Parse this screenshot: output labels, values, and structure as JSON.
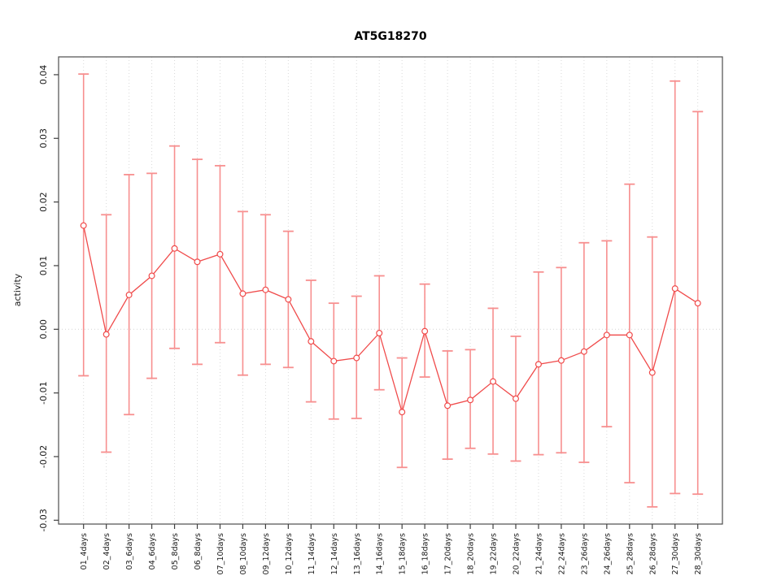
{
  "figure": {
    "background": "#ffffff"
  },
  "chart_data": {
    "type": "line",
    "title": "AT5G18270",
    "xlabel": "",
    "ylabel": "activity",
    "marker": "open-circle",
    "grid": "vertical-dotted",
    "zero_line": true,
    "legend": "none",
    "ylim": [
      -0.0306,
      0.0428
    ],
    "yticks": [
      0.04,
      0.03,
      0.02,
      0.01,
      0.0,
      -0.01,
      -0.02,
      -0.03
    ],
    "ytick_labels": [
      "0.04",
      "0.03",
      "0.02",
      "0.01",
      "0.00",
      "-0.01",
      "-0.02",
      "-0.03"
    ],
    "categories": [
      "01_4days",
      "02_4days",
      "03_6days",
      "04_6days",
      "05_8days",
      "06_8days",
      "07_10days",
      "08_10days",
      "09_12days",
      "10_12days",
      "11_14days",
      "12_14days",
      "13_16days",
      "14_16days",
      "15_18days",
      "16_18days",
      "17_20days",
      "18_20days",
      "19_22days",
      "20_22days",
      "21_24days",
      "22_24days",
      "23_26days",
      "24_26days",
      "25_28days",
      "26_28days",
      "27_30days",
      "28_30days"
    ],
    "series": [
      {
        "name": "activity",
        "values": [
          0.0163,
          -0.0008,
          0.0054,
          0.0084,
          0.0127,
          0.0106,
          0.0118,
          0.0056,
          0.0062,
          0.0047,
          -0.0019,
          -0.005,
          -0.0045,
          -0.0006,
          -0.013,
          -0.0003,
          -0.012,
          -0.0111,
          -0.0082,
          -0.0109,
          -0.0055,
          -0.0049,
          -0.0035,
          -0.0009,
          -0.0009,
          -0.0068,
          0.0064,
          0.0041
        ],
        "error_high": [
          0.0401,
          0.018,
          0.0243,
          0.0245,
          0.0288,
          0.0267,
          0.0257,
          0.0185,
          0.018,
          0.0154,
          0.0077,
          0.0041,
          0.0052,
          0.0084,
          -0.0045,
          0.0071,
          -0.0034,
          -0.0032,
          0.0033,
          -0.0011,
          0.009,
          0.0097,
          0.0136,
          0.0139,
          0.0228,
          0.0145,
          0.039,
          0.0342
        ],
        "error_low": [
          -0.0073,
          -0.0193,
          -0.0134,
          -0.0077,
          -0.003,
          -0.0055,
          -0.0021,
          -0.0072,
          -0.0055,
          -0.006,
          -0.0114,
          -0.0141,
          -0.014,
          -0.0095,
          -0.0217,
          -0.0075,
          -0.0204,
          -0.0187,
          -0.0196,
          -0.0207,
          -0.0197,
          -0.0194,
          -0.0209,
          -0.0153,
          -0.0241,
          -0.0279,
          -0.0258,
          -0.0259
        ]
      }
    ],
    "colors": {
      "line": "#f04b4b",
      "marker_stroke": "#f04b4b",
      "marker_fill": "#ffffff",
      "error_bar": "#f78f8f",
      "grid": "#d9d9d9",
      "zero_line_color": "#d4d4d4",
      "axis_box": "#4d4d4d",
      "tick": "#404040",
      "text": "#1a1a1a"
    }
  }
}
